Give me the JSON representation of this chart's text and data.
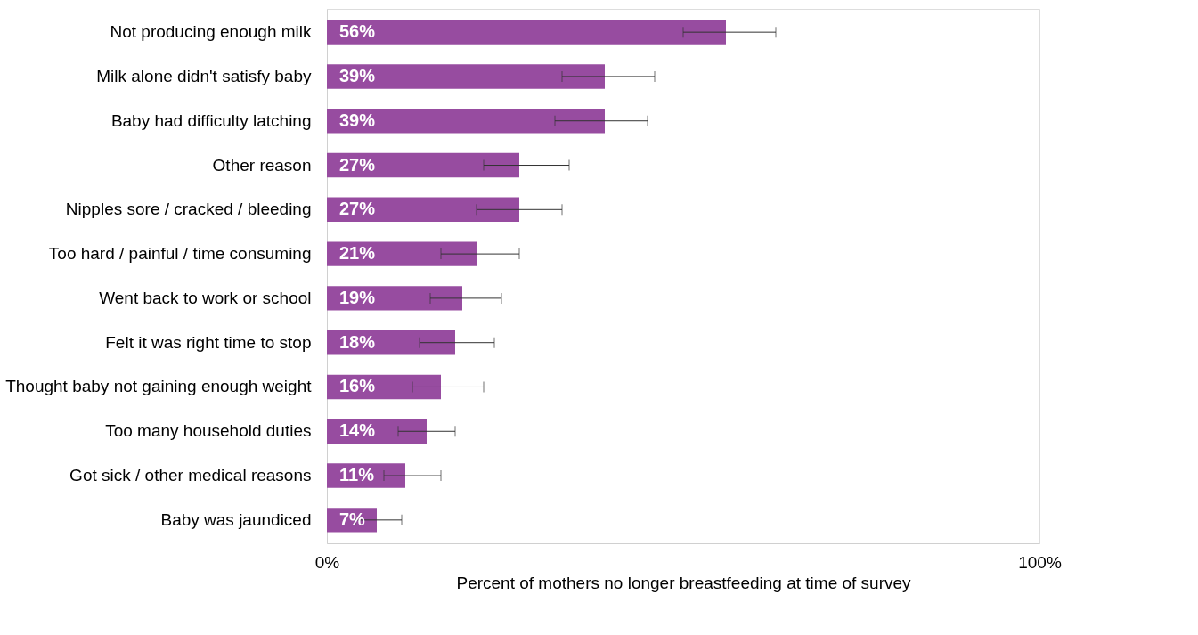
{
  "chart_data": {
    "type": "bar",
    "orientation": "horizontal",
    "xlabel": "Percent of mothers no longer breastfeeding at time of survey",
    "categories": [
      "Not producing enough milk",
      "Milk alone didn't satisfy baby",
      "Baby had difficulty latching",
      "Other reason",
      "Nipples sore / cracked / bleeding",
      "Too hard / painful / time consuming",
      "Went back to work or school",
      "Felt it was right time to stop",
      "Thought baby not gaining enough weight",
      "Too many household duties",
      "Got sick / other medical reasons",
      "Baby was jaundiced"
    ],
    "values": [
      56,
      39,
      39,
      27,
      27,
      21,
      19,
      18,
      16,
      14,
      11,
      7
    ],
    "errors": [
      [
        50,
        63
      ],
      [
        33,
        46
      ],
      [
        32,
        45
      ],
      [
        22,
        34
      ],
      [
        21,
        33
      ],
      [
        16,
        27
      ],
      [
        14.5,
        24.5
      ],
      [
        13,
        23.5
      ],
      [
        12,
        22
      ],
      [
        10,
        18
      ],
      [
        8,
        16
      ],
      [
        4,
        10.5
      ]
    ],
    "value_labels": [
      "56%",
      "39%",
      "39%",
      "27%",
      "27%",
      "21%",
      "19%",
      "18%",
      "16%",
      "14%",
      "11%",
      "7%"
    ],
    "color": "#974ca0",
    "xlim": [
      0,
      100
    ],
    "xticks": [
      {
        "value": 0,
        "label": "0%"
      },
      {
        "value": 100,
        "label": "100%"
      }
    ]
  }
}
